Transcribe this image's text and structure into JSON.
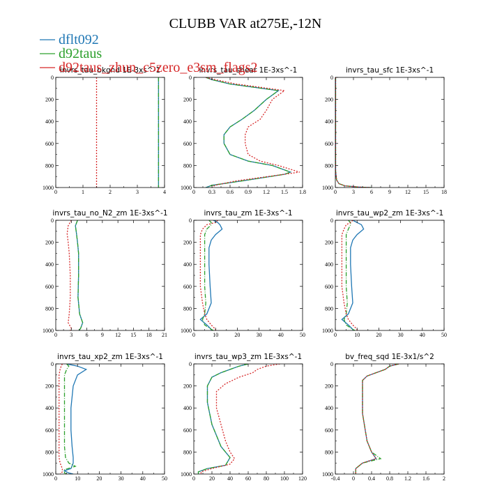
{
  "figure": {
    "title": "CLUBB VAR at275E,-12N",
    "legend": [
      {
        "label": "dflt092",
        "color": "#1f77b4"
      },
      {
        "label": "d92taus",
        "color": "#2ca02c"
      },
      {
        "label": "d92taus_zhun_c5zero_e3sm_flags2",
        "color": "#d62728"
      }
    ]
  },
  "chart_data": [
    {
      "type": "line",
      "title": "invrs_tau_bkgnd  1E-3xs^-1",
      "xlim": [
        0,
        4
      ],
      "xticks": [
        0,
        1.0,
        2.0,
        3.0,
        4.0
      ],
      "ylim": [
        1000,
        0
      ],
      "yticks": [
        0,
        200,
        400,
        600,
        800,
        1000
      ],
      "series": [
        {
          "name": "dflt092",
          "x": [
            3.78,
            3.78
          ],
          "y": [
            0,
            1000
          ]
        },
        {
          "name": "d92taus",
          "x": [
            3.78,
            3.78
          ],
          "y": [
            0,
            1000
          ]
        },
        {
          "name": "d92taus_zhun_c5zero_e3sm_flags2",
          "x": [
            1.5,
            1.5
          ],
          "y": [
            0,
            1000
          ]
        }
      ]
    },
    {
      "type": "line",
      "title": "invrs_tau_shear  1E-3xs^-1",
      "xlim": [
        0,
        1.8
      ],
      "xticks": [
        0,
        0.3,
        0.6,
        0.9,
        1.2,
        1.5,
        1.8
      ],
      "ylim": [
        1000,
        0
      ],
      "yticks": [
        0,
        200,
        400,
        600,
        800,
        1000
      ],
      "series": [
        {
          "name": "dflt092",
          "x": [
            0.2,
            0.3,
            0.6,
            1.0,
            1.4,
            1.2,
            1.0,
            0.8,
            0.6,
            0.5,
            0.5,
            0.6,
            0.9,
            1.3,
            1.6,
            1.5,
            0.8,
            0.3,
            0.2
          ],
          "y": [
            0,
            20,
            60,
            90,
            120,
            200,
            300,
            380,
            450,
            520,
            600,
            700,
            760,
            800,
            860,
            880,
            940,
            980,
            1000
          ]
        },
        {
          "name": "d92taus",
          "x": [
            0.2,
            0.3,
            0.6,
            1.0,
            1.4,
            1.2,
            1.0,
            0.8,
            0.6,
            0.5,
            0.5,
            0.6,
            0.9,
            1.3,
            1.6,
            1.5,
            0.8,
            0.3,
            0.2
          ],
          "y": [
            0,
            20,
            60,
            90,
            120,
            200,
            300,
            380,
            450,
            520,
            600,
            700,
            760,
            800,
            860,
            880,
            940,
            980,
            1000
          ]
        },
        {
          "name": "d92taus_zhun_c5zero_e3sm_flags2",
          "x": [
            0.2,
            0.35,
            0.7,
            1.1,
            1.5,
            1.3,
            1.2,
            1.1,
            0.9,
            0.85,
            0.85,
            0.9,
            1.1,
            1.4,
            1.75,
            1.5,
            0.7,
            0.35,
            0.3
          ],
          "y": [
            0,
            20,
            60,
            90,
            120,
            200,
            300,
            380,
            450,
            520,
            600,
            700,
            760,
            800,
            860,
            880,
            940,
            980,
            1000
          ]
        }
      ]
    },
    {
      "type": "line",
      "title": "invrs_tau_sfc  1E-3xs^-1",
      "xlim": [
        0,
        18
      ],
      "xticks": [
        0,
        3,
        6,
        9,
        12,
        15,
        18
      ],
      "ylim": [
        1000,
        0
      ],
      "yticks": [
        0,
        200,
        400,
        600,
        800,
        1000
      ],
      "series": [
        {
          "name": "dflt092",
          "x": [
            0.05,
            0.05,
            0.2,
            0.6,
            1.6,
            4,
            6
          ],
          "y": [
            0,
            850,
            930,
            965,
            985,
            996,
            1000
          ]
        },
        {
          "name": "d92taus",
          "x": [
            0.05,
            0.05,
            0.2,
            0.6,
            1.6,
            4,
            6
          ],
          "y": [
            0,
            850,
            930,
            965,
            985,
            996,
            1000
          ]
        },
        {
          "name": "d92taus_zhun_c5zero_e3sm_flags2",
          "x": [
            0.05,
            0.05,
            0.2,
            0.6,
            1.6,
            4,
            6
          ],
          "y": [
            0,
            850,
            930,
            965,
            985,
            996,
            1000
          ]
        }
      ]
    },
    {
      "type": "line",
      "title": "invrs_tau_no_N2_zm  1E-3xs^-1",
      "xlim": [
        0,
        21
      ],
      "xticks": [
        0,
        3,
        6,
        9,
        12,
        15,
        18,
        21
      ],
      "ylim": [
        1000,
        0
      ],
      "yticks": [
        0,
        200,
        400,
        600,
        800,
        1000
      ],
      "series": [
        {
          "name": "dflt092",
          "x": [
            4.2,
            3.8,
            4.0,
            4.2,
            4.4,
            4.4,
            4.3,
            4.6,
            5.2,
            4.8,
            4.5
          ],
          "y": [
            0,
            50,
            120,
            200,
            300,
            500,
            700,
            850,
            930,
            980,
            1000
          ]
        },
        {
          "name": "d92taus",
          "x": [
            4.2,
            3.8,
            4.0,
            4.2,
            4.4,
            4.4,
            4.3,
            4.6,
            5.2,
            4.8,
            4.5
          ],
          "y": [
            0,
            50,
            120,
            200,
            300,
            500,
            700,
            850,
            930,
            980,
            1000
          ]
        },
        {
          "name": "d92taus_zhun_c5zero_e3sm_flags2",
          "x": [
            3.0,
            2.4,
            2.2,
            2.4,
            2.6,
            2.8,
            2.8,
            2.6,
            2.4,
            3.0,
            2.8
          ],
          "y": [
            0,
            50,
            120,
            200,
            300,
            500,
            700,
            850,
            930,
            980,
            1000
          ]
        }
      ]
    },
    {
      "type": "line",
      "title": "invrs_tau_zm  1E-3xs^-1",
      "xlim": [
        0,
        50
      ],
      "xticks": [
        0,
        10,
        20,
        30,
        40,
        50
      ],
      "ylim": [
        1000,
        0
      ],
      "yticks": [
        0,
        200,
        400,
        600,
        800,
        1000
      ],
      "series": [
        {
          "name": "dflt092",
          "x": [
            9,
            11,
            12,
            13,
            10,
            8,
            7,
            7,
            7.5,
            8,
            6,
            3,
            6,
            8,
            8
          ],
          "y": [
            0,
            20,
            40,
            80,
            130,
            180,
            250,
            400,
            600,
            750,
            850,
            900,
            950,
            990,
            1000
          ]
        },
        {
          "name": "d92taus",
          "x": [
            7,
            8,
            8,
            6,
            5,
            5,
            5,
            5,
            5,
            5.5,
            5,
            4,
            5,
            8,
            9
          ],
          "y": [
            0,
            20,
            40,
            80,
            130,
            180,
            250,
            400,
            600,
            750,
            850,
            900,
            950,
            990,
            1000
          ]
        },
        {
          "name": "d92taus_zhun_c5zero_e3sm_flags2",
          "x": [
            11,
            10,
            6,
            4,
            3,
            3,
            3,
            3,
            3,
            4,
            5,
            6,
            8,
            10,
            10
          ],
          "y": [
            0,
            20,
            40,
            80,
            130,
            180,
            250,
            400,
            600,
            750,
            850,
            900,
            950,
            990,
            1000
          ]
        }
      ]
    },
    {
      "type": "line",
      "title": "invrs_tau_wp2_zm  1E-3xs^-1",
      "xlim": [
        0,
        50
      ],
      "xticks": [
        0,
        10,
        20,
        30,
        40,
        50
      ],
      "ylim": [
        1000,
        0
      ],
      "yticks": [
        0,
        200,
        400,
        600,
        800,
        1000
      ],
      "series": [
        {
          "name": "dflt092",
          "x": [
            8,
            10,
            12,
            13,
            10,
            8,
            7,
            7,
            7.5,
            8,
            6,
            3,
            6,
            8,
            8
          ],
          "y": [
            0,
            20,
            40,
            80,
            130,
            180,
            250,
            400,
            600,
            750,
            850,
            900,
            950,
            990,
            1000
          ]
        },
        {
          "name": "d92taus",
          "x": [
            6,
            7,
            7,
            6,
            5,
            5,
            5,
            5,
            5,
            5.5,
            5,
            4,
            5,
            8,
            9
          ],
          "y": [
            0,
            20,
            40,
            80,
            130,
            180,
            250,
            400,
            600,
            750,
            850,
            900,
            950,
            990,
            1000
          ]
        },
        {
          "name": "d92taus_zhun_c5zero_e3sm_flags2",
          "x": [
            8,
            7,
            5,
            4,
            3,
            3,
            3,
            3,
            3,
            4,
            5,
            6,
            8,
            10,
            10
          ],
          "y": [
            0,
            20,
            40,
            80,
            130,
            180,
            250,
            400,
            600,
            750,
            850,
            900,
            950,
            990,
            1000
          ]
        }
      ]
    },
    {
      "type": "line",
      "title": "invrs_tau_xp2_zm  1E-3xs^-1",
      "xlim": [
        0,
        50
      ],
      "xticks": [
        0,
        10,
        20,
        30,
        40,
        50
      ],
      "ylim": [
        1000,
        0
      ],
      "yticks": [
        0,
        200,
        400,
        600,
        800,
        1000
      ],
      "series": [
        {
          "name": "dflt092",
          "x": [
            5,
            10,
            14,
            10,
            8,
            7,
            7,
            7.5,
            8,
            8,
            7,
            4,
            6,
            8
          ],
          "y": [
            0,
            20,
            50,
            100,
            200,
            400,
            600,
            750,
            850,
            900,
            950,
            970,
            990,
            1000
          ]
        },
        {
          "name": "d92taus",
          "x": [
            5,
            6,
            5,
            4,
            4,
            4,
            4,
            4,
            4.5,
            6,
            9,
            4,
            4,
            5
          ],
          "y": [
            0,
            20,
            50,
            100,
            200,
            400,
            600,
            750,
            850,
            900,
            930,
            960,
            990,
            1000
          ]
        },
        {
          "name": "d92taus_zhun_c5zero_e3sm_flags2",
          "x": [
            3,
            2.5,
            2,
            1.5,
            1.5,
            1.5,
            1.5,
            1.5,
            1.5,
            2,
            3,
            3,
            2
          ],
          "y": [
            0,
            20,
            50,
            100,
            200,
            400,
            600,
            750,
            850,
            900,
            950,
            980,
            1000
          ]
        }
      ]
    },
    {
      "type": "line",
      "title": "invrs_tau_wp3_zm  1E-3xs^-1",
      "xlim": [
        0,
        120
      ],
      "xticks": [
        0,
        20,
        40,
        60,
        80,
        100,
        120
      ],
      "ylim": [
        1000,
        0
      ],
      "yticks": [
        0,
        200,
        400,
        600,
        800,
        1000
      ],
      "series": [
        {
          "name": "dflt092",
          "x": [
            60,
            50,
            40,
            30,
            20,
            15,
            15,
            20,
            30,
            40,
            35,
            15,
            5,
            5
          ],
          "y": [
            0,
            20,
            50,
            80,
            120,
            200,
            350,
            550,
            750,
            850,
            920,
            950,
            980,
            1000
          ]
        },
        {
          "name": "d92taus",
          "x": [
            60,
            50,
            40,
            30,
            20,
            15,
            15,
            20,
            30,
            40,
            35,
            15,
            5,
            5
          ],
          "y": [
            0,
            20,
            50,
            80,
            120,
            200,
            350,
            550,
            750,
            850,
            920,
            950,
            980,
            1000
          ]
        },
        {
          "name": "d92taus_zhun_c5zero_e3sm_flags2",
          "x": [
            95,
            80,
            70,
            65,
            50,
            35,
            25,
            25,
            30,
            35,
            40,
            45,
            40,
            20,
            8,
            8
          ],
          "y": [
            0,
            20,
            50,
            80,
            120,
            180,
            250,
            400,
            550,
            700,
            800,
            860,
            910,
            950,
            980,
            1000
          ]
        }
      ]
    },
    {
      "type": "line",
      "title": "bv_freq_sqd  1E-3x1/s^2",
      "xlim": [
        -0.4,
        2.0
      ],
      "xticks": [
        -0.4,
        0,
        0.4,
        0.8,
        1.2,
        1.6,
        2.0
      ],
      "ylim": [
        1000,
        0
      ],
      "yticks": [
        0,
        200,
        400,
        600,
        800,
        1000
      ],
      "series": [
        {
          "name": "dflt092",
          "x": [
            1.0,
            0.8,
            0.7,
            0.5,
            0.3,
            0.2,
            0.2,
            0.2,
            0.3,
            0.4,
            0.5,
            0.2,
            0.05,
            0.05
          ],
          "y": [
            0,
            20,
            50,
            80,
            110,
            150,
            250,
            450,
            700,
            800,
            860,
            900,
            950,
            1000
          ]
        },
        {
          "name": "d92taus",
          "x": [
            1.0,
            0.8,
            0.7,
            0.5,
            0.3,
            0.2,
            0.2,
            0.2,
            0.3,
            0.4,
            0.6,
            0.2,
            0.05,
            0.05
          ],
          "y": [
            0,
            20,
            50,
            80,
            110,
            150,
            250,
            450,
            700,
            800,
            860,
            900,
            950,
            1000
          ]
        },
        {
          "name": "d92taus_zhun_c5zero_e3sm_flags2",
          "x": [
            1.0,
            0.8,
            0.7,
            0.5,
            0.3,
            0.2,
            0.2,
            0.2,
            0.3,
            0.4,
            0.5,
            0.2,
            0.05,
            0.05
          ],
          "y": [
            0,
            20,
            50,
            80,
            110,
            150,
            250,
            450,
            700,
            800,
            860,
            900,
            950,
            1000
          ]
        }
      ]
    }
  ]
}
